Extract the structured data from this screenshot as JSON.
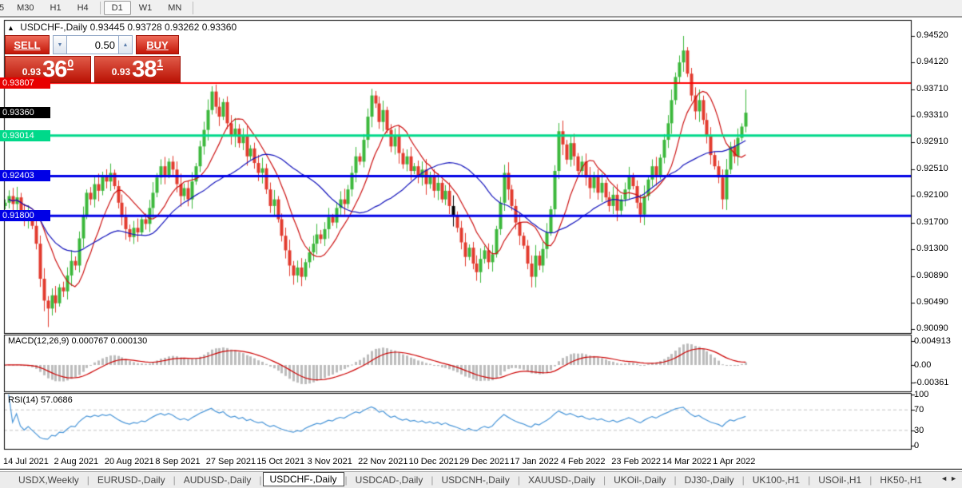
{
  "toolbar": {
    "timeframes": [
      {
        "label": "5",
        "active": false,
        "partial": true
      },
      {
        "label": "M30",
        "active": false
      },
      {
        "label": "H1",
        "active": false
      },
      {
        "label": "H4",
        "active": false
      },
      {
        "label": "D1",
        "active": true
      },
      {
        "label": "W1",
        "active": false
      },
      {
        "label": "MN",
        "active": false
      }
    ]
  },
  "chart_header": {
    "collapse_icon": "▲",
    "title": "USDCHF-,Daily",
    "ohlc": "0.93445 0.93728 0.93262 0.93360"
  },
  "trade_panel": {
    "sell_label": "SELL",
    "buy_label": "BUY",
    "volume": "0.50",
    "down_icon": "▼",
    "up_icon": "▲",
    "bid": {
      "prefix": "0.93",
      "big": "36",
      "sup": "0"
    },
    "ask": {
      "prefix": "0.93",
      "big": "38",
      "sup": "1"
    }
  },
  "price_axis": {
    "ticks": [
      "0.94520",
      "0.94120",
      "0.93710",
      "0.93310",
      "0.92910",
      "0.92510",
      "0.92100",
      "0.91700",
      "0.91300",
      "0.90890",
      "0.90490",
      "0.90090"
    ],
    "badges": [
      {
        "value": "0.93807",
        "price": 0.93807,
        "bg": "#e80000"
      },
      {
        "value": "0.93360",
        "price": 0.9336,
        "bg": "#000000"
      },
      {
        "value": "0.93014",
        "price": 0.93014,
        "bg": "#00d98a"
      },
      {
        "value": "0.92403",
        "price": 0.92403,
        "bg": "#0000e6"
      },
      {
        "value": "0.91800",
        "price": 0.918,
        "bg": "#0000e6"
      }
    ]
  },
  "macd_panel": {
    "label": "MACD(12,26,9) 0.000767 0.000130",
    "axis": [
      "0.004913",
      "0.00",
      "-0.00361"
    ]
  },
  "rsi_panel": {
    "label": "RSI(14) 57.0686",
    "axis": [
      "100",
      "70",
      "30",
      "0"
    ]
  },
  "date_axis": {
    "labels": [
      "14 Jul 2021",
      "2 Aug 2021",
      "20 Aug 2021",
      "8 Sep 2021",
      "27 Sep 2021",
      "15 Oct 2021",
      "3 Nov 2021",
      "22 Nov 2021",
      "10 Dec 2021",
      "29 Dec 2021",
      "17 Jan 2022",
      "4 Feb 2022",
      "23 Feb 2022",
      "14 Mar 2022",
      "1 Apr 2022"
    ]
  },
  "tabbar": {
    "tabs": [
      "USDX,Weekly",
      "EURUSD-,Daily",
      "AUDUSD-,Daily",
      "USDCHF-,Daily",
      "USDCAD-,Daily",
      "USDCNH-,Daily",
      "XAUUSD-,Daily",
      "UKOil-,Daily",
      "DJ30-,Daily",
      "UK100-,H1",
      "USOil-,H1",
      "HK50-,H1"
    ],
    "active_index": 3,
    "scroll_left_icon": "◄",
    "scroll_right_icon": "►"
  },
  "chart_data": {
    "type": "candlestick",
    "symbol": "USDCHF-",
    "period": "Daily",
    "current_price": 0.9336,
    "y_axis": {
      "top_price": 0.9452,
      "bottom_price": 0.9009
    },
    "first_open": 0.9195,
    "closes": [
      0.92,
      0.921,
      0.9198,
      0.9208,
      0.9188,
      0.9175,
      0.9182,
      0.9165,
      0.9138,
      0.9085,
      0.9052,
      0.904,
      0.906,
      0.9048,
      0.9072,
      0.9066,
      0.909,
      0.9112,
      0.9105,
      0.9146,
      0.918,
      0.9215,
      0.9205,
      0.9228,
      0.9218,
      0.924,
      0.9232,
      0.9245,
      0.9225,
      0.92,
      0.9178,
      0.916,
      0.9148,
      0.9162,
      0.9155,
      0.9175,
      0.9168,
      0.9192,
      0.9215,
      0.9238,
      0.9255,
      0.9242,
      0.9262,
      0.925,
      0.9228,
      0.921,
      0.9222,
      0.9205,
      0.9232,
      0.9255,
      0.9285,
      0.931,
      0.934,
      0.9368,
      0.9345,
      0.933,
      0.9352,
      0.932,
      0.93,
      0.9312,
      0.929,
      0.9302,
      0.927,
      0.9282,
      0.926,
      0.9245,
      0.9252,
      0.922,
      0.9195,
      0.9205,
      0.9175,
      0.915,
      0.9128,
      0.9105,
      0.909,
      0.9102,
      0.9088,
      0.911,
      0.9125,
      0.9138,
      0.9152,
      0.9145,
      0.916,
      0.9178,
      0.917,
      0.9192,
      0.9205,
      0.9198,
      0.922,
      0.9245,
      0.927,
      0.9262,
      0.9295,
      0.933,
      0.9362,
      0.935,
      0.9322,
      0.934,
      0.931,
      0.9285,
      0.93,
      0.9275,
      0.9258,
      0.927,
      0.9248,
      0.9255,
      0.9238,
      0.925,
      0.9228,
      0.924,
      0.9218,
      0.923,
      0.9205,
      0.9218,
      0.9195,
      0.918,
      0.9162,
      0.914,
      0.9118,
      0.9132,
      0.9108,
      0.9095,
      0.9115,
      0.9128,
      0.911,
      0.9122,
      0.916,
      0.92,
      0.9245,
      0.922,
      0.9195,
      0.917,
      0.915,
      0.9135,
      0.9108,
      0.9088,
      0.912,
      0.9105,
      0.913,
      0.9155,
      0.919,
      0.9248,
      0.9308,
      0.9288,
      0.9265,
      0.929,
      0.927,
      0.9248,
      0.9262,
      0.9238,
      0.9222,
      0.924,
      0.9215,
      0.923,
      0.9208,
      0.9195,
      0.9212,
      0.9188,
      0.9205,
      0.922,
      0.924,
      0.9225,
      0.92,
      0.9182,
      0.921,
      0.9235,
      0.9255,
      0.924,
      0.9268,
      0.9295,
      0.932,
      0.9355,
      0.939,
      0.9412,
      0.943,
      0.9395,
      0.9362,
      0.9338,
      0.9355,
      0.9325,
      0.93,
      0.9272,
      0.9255,
      0.9238,
      0.9205,
      0.925,
      0.9285,
      0.927,
      0.9298,
      0.9315,
      0.9336
    ],
    "spikes": {
      "11": [
        null,
        0.9012
      ],
      "53": [
        0.9376,
        null
      ],
      "74": [
        null,
        0.9076
      ],
      "94": [
        0.9372,
        null
      ],
      "121": [
        null,
        0.9082
      ],
      "135": [
        null,
        0.9072
      ],
      "174": [
        0.9452,
        null
      ],
      "184": [
        null,
        0.919
      ],
      "190": [
        0.9371,
        null
      ]
    },
    "doji_index": 115,
    "levels": [
      {
        "price": 0.93807,
        "color": "#ff0000",
        "width": 2
      },
      {
        "price": 0.93014,
        "color": "#00d98a",
        "width": 3
      },
      {
        "price": 0.92403,
        "color": "#0000e6",
        "width": 3
      },
      {
        "price": 0.918,
        "color": "#0000e6",
        "width": 3
      }
    ],
    "moving_averages": [
      {
        "period": 10,
        "color": "#cc1111"
      },
      {
        "period": 30,
        "color": "#1414bb"
      }
    ],
    "indicators": {
      "macd": {
        "fast": 12,
        "slow": 26,
        "signal": 9
      },
      "rsi": {
        "period": 14,
        "upper": 70,
        "lower": 30
      }
    },
    "colors": {
      "up": "#3cb83c",
      "down": "#e23b2e",
      "doji": "#000000",
      "macd_bar": "#bdbdbd",
      "macd_signal": "#cc0000",
      "rsi_line": "#4a96d8",
      "rsi_dash": "#c4c4c4"
    }
  }
}
